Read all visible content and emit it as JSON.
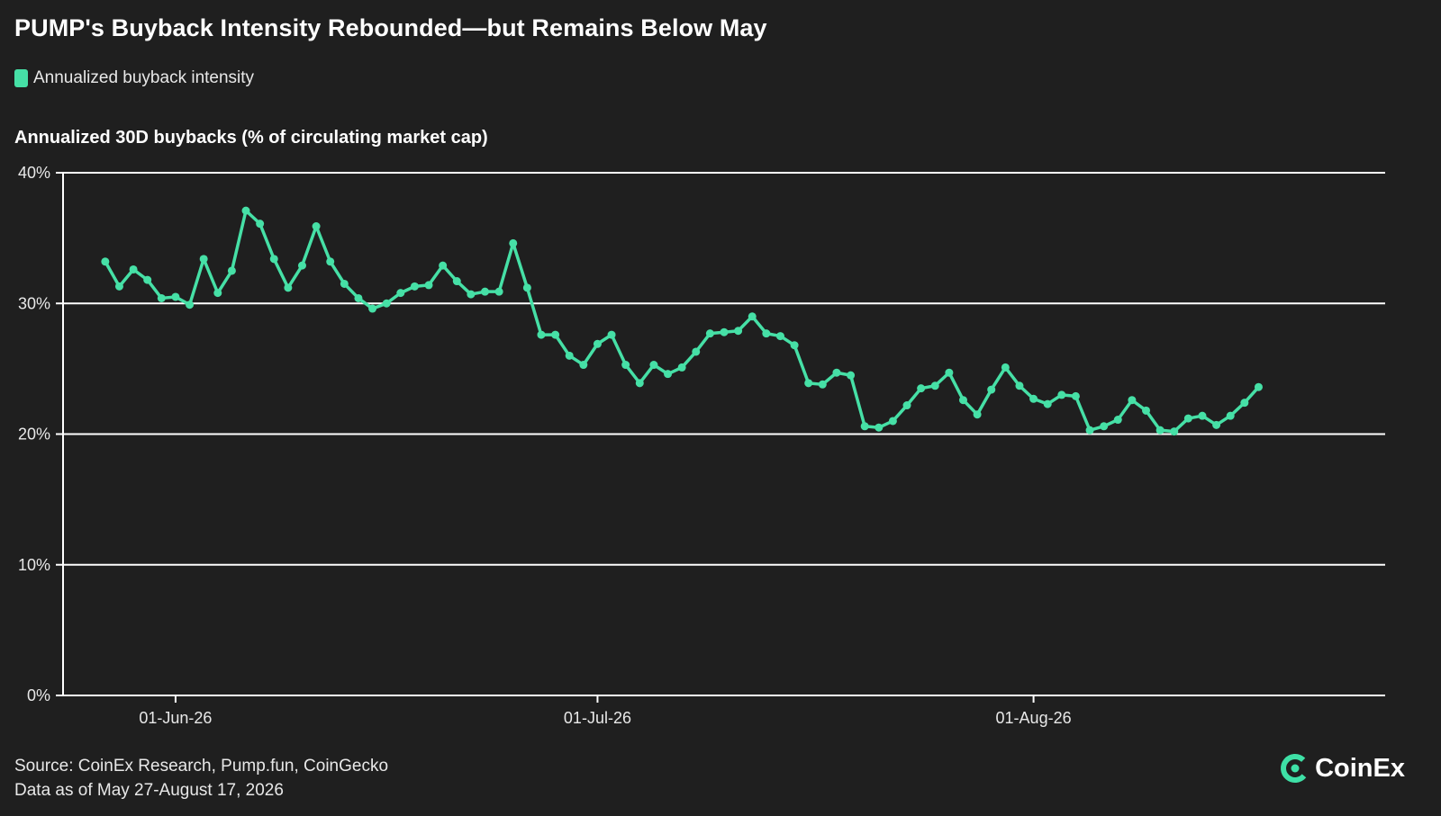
{
  "title": "PUMP's Buyback Intensity Rebounded—but Remains Below May",
  "legend": {
    "label": "Annualized buyback intensity",
    "color": "#46e0a6"
  },
  "axis_title": "Annualized 30D buybacks (% of circulating market cap)",
  "footer": {
    "source": "Source: CoinEx Research, Pump.fun, CoinGecko",
    "data_range": "Data as of May 27-August 17, 2026"
  },
  "brand": {
    "name": "CoinEx",
    "icon": "coinex-logo-icon",
    "color": "#3ee0a6"
  },
  "chart_data": {
    "type": "line",
    "title": "PUMP's Buyback Intensity Rebounded—but Remains Below May",
    "ylabel": "Annualized 30D buybacks (% of circulating market cap)",
    "xlabel": "",
    "ylim": [
      0,
      40
    ],
    "yticks": [
      0,
      10,
      20,
      30,
      40
    ],
    "ytick_labels": [
      "0%",
      "10%",
      "20%",
      "30%",
      "40%"
    ],
    "xlim": [
      "2026-05-24",
      "2026-08-26"
    ],
    "xticks": [
      "2026-06-01",
      "2026-07-01",
      "2026-08-01"
    ],
    "xtick_labels": [
      "01-Jun-26",
      "01-Jul-26",
      "01-Aug-26"
    ],
    "grid": "horizontal",
    "legend_position": "top-left",
    "series": [
      {
        "name": "Annualized buyback intensity",
        "color": "#46e0a6",
        "x": [
          "2026-05-27",
          "2026-05-28",
          "2026-05-29",
          "2026-05-30",
          "2026-05-31",
          "2026-06-01",
          "2026-06-02",
          "2026-06-03",
          "2026-06-04",
          "2026-06-05",
          "2026-06-06",
          "2026-06-07",
          "2026-06-08",
          "2026-06-09",
          "2026-06-10",
          "2026-06-11",
          "2026-06-12",
          "2026-06-13",
          "2026-06-14",
          "2026-06-15",
          "2026-06-16",
          "2026-06-17",
          "2026-06-18",
          "2026-06-19",
          "2026-06-20",
          "2026-06-21",
          "2026-06-22",
          "2026-06-23",
          "2026-06-24",
          "2026-06-25",
          "2026-06-26",
          "2026-06-27",
          "2026-06-28",
          "2026-06-29",
          "2026-06-30",
          "2026-07-01",
          "2026-07-02",
          "2026-07-03",
          "2026-07-04",
          "2026-07-05",
          "2026-07-06",
          "2026-07-07",
          "2026-07-08",
          "2026-07-09",
          "2026-07-10",
          "2026-07-11",
          "2026-07-12",
          "2026-07-13",
          "2026-07-14",
          "2026-07-15",
          "2026-07-16",
          "2026-07-17",
          "2026-07-18",
          "2026-07-19",
          "2026-07-20",
          "2026-07-21",
          "2026-07-22",
          "2026-07-23",
          "2026-07-24",
          "2026-07-25",
          "2026-07-26",
          "2026-07-27",
          "2026-07-28",
          "2026-07-29",
          "2026-07-30",
          "2026-07-31",
          "2026-08-01",
          "2026-08-02",
          "2026-08-03",
          "2026-08-04",
          "2026-08-05",
          "2026-08-06",
          "2026-08-07",
          "2026-08-08",
          "2026-08-09",
          "2026-08-10",
          "2026-08-11",
          "2026-08-12",
          "2026-08-13",
          "2026-08-14",
          "2026-08-15",
          "2026-08-16",
          "2026-08-17"
        ],
        "values": [
          33.2,
          31.3,
          32.6,
          31.8,
          30.4,
          30.5,
          29.9,
          33.4,
          30.8,
          32.5,
          37.1,
          36.1,
          33.4,
          31.2,
          32.9,
          35.9,
          33.2,
          31.5,
          30.4,
          29.6,
          30.0,
          30.8,
          31.3,
          31.4,
          32.9,
          31.7,
          30.7,
          30.9,
          30.9,
          34.6,
          31.2,
          27.6,
          27.6,
          26.0,
          25.3,
          26.9,
          27.6,
          25.3,
          23.9,
          25.3,
          24.6,
          25.1,
          26.3,
          27.7,
          27.8,
          27.9,
          29.0,
          27.7,
          27.5,
          26.8,
          23.9,
          23.8,
          24.7,
          24.5,
          20.6,
          20.5,
          21.0,
          22.2,
          23.5,
          23.7,
          24.7,
          22.6,
          21.5,
          23.4,
          25.1,
          23.7,
          22.7,
          22.3,
          23.0,
          22.9,
          20.3,
          20.6,
          21.1,
          22.6,
          21.8,
          20.3,
          20.2,
          21.2,
          21.4,
          20.7,
          21.4,
          22.4,
          23.6
        ]
      }
    ]
  }
}
